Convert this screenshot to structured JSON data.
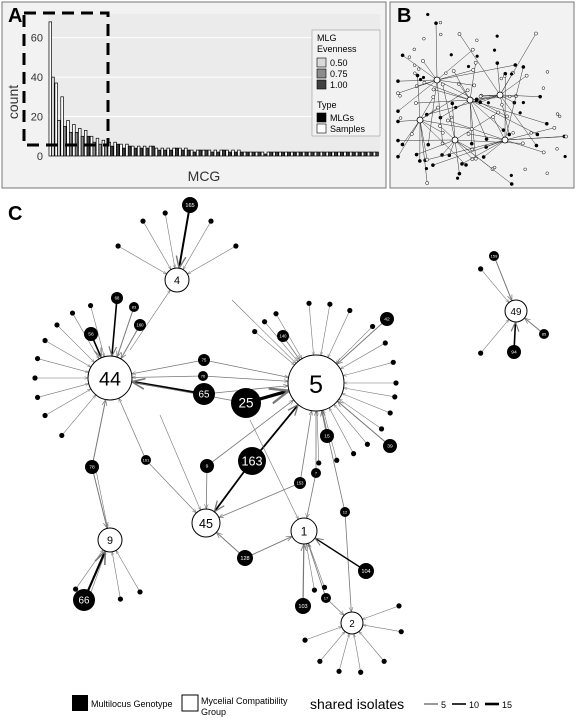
{
  "panels": {
    "a": {
      "label": "A"
    },
    "b": {
      "label": "B"
    },
    "c": {
      "label": "C"
    }
  },
  "chart_data": {
    "type": "bar",
    "xlabel": "MCG",
    "ylabel": "count",
    "ylim": [
      0,
      72
    ],
    "y_ticks": [
      "0",
      "20",
      "40",
      "60"
    ],
    "legend_evenness_title": "MLG Evenness",
    "legend_evenness": [
      {
        "label": "0.50",
        "color": "#d9d9d9"
      },
      {
        "label": "0.75",
        "color": "#8c8c8c"
      },
      {
        "label": "1.00",
        "color": "#404040"
      }
    ],
    "legend_type_title": "Type",
    "legend_type": [
      {
        "label": "MLGs",
        "color": "#000000"
      },
      {
        "label": "Samples",
        "color": "#ffffff"
      }
    ],
    "samples": [
      68,
      37,
      30,
      18,
      16,
      14,
      13,
      10,
      9,
      8,
      7,
      7,
      6,
      6,
      5,
      5,
      5,
      5,
      4,
      4,
      4,
      4,
      4,
      4,
      3,
      3,
      3,
      3,
      3,
      3,
      3,
      3,
      3,
      2,
      2,
      2,
      2,
      2,
      2,
      2,
      2,
      2,
      2,
      2,
      2,
      2,
      2,
      2,
      2,
      2,
      2,
      2,
      2,
      2,
      2,
      2
    ],
    "mlgs": [
      40,
      18,
      15,
      12,
      12,
      10,
      10,
      7,
      6,
      5,
      5,
      6,
      4,
      5,
      4,
      4,
      4,
      5,
      3,
      3,
      3,
      4,
      3,
      3,
      2,
      3,
      3,
      2,
      2,
      3,
      2,
      2,
      2,
      2,
      2,
      2,
      1,
      2,
      2,
      2,
      2,
      2,
      2,
      2,
      2,
      2,
      2,
      2,
      2,
      2,
      2,
      2,
      2,
      2,
      2,
      2
    ],
    "mlg_evenness": [
      0.5,
      0.5,
      0.75,
      0.75,
      0.75,
      0.75,
      1.0,
      0.75,
      0.75,
      0.75,
      1.0,
      1.0,
      1.0,
      1.0,
      1.0,
      1.0,
      1.0,
      1.0,
      1.0,
      1.0,
      1.0,
      1.0,
      1.0,
      1.0,
      1.0,
      1.0,
      1.0,
      1.0,
      1.0,
      1.0,
      1.0,
      1.0,
      1.0,
      1.0,
      1.0,
      1.0,
      1.0,
      1.0,
      1.0,
      1.0,
      1.0,
      1.0,
      1.0,
      1.0,
      1.0,
      1.0,
      1.0,
      1.0,
      1.0,
      1.0,
      1.0,
      1.0,
      1.0,
      1.0,
      1.0,
      1.0
    ]
  },
  "network": {
    "mcg_nodes": [
      {
        "id": "4",
        "label": "4",
        "size": 1
      },
      {
        "id": "44",
        "label": "44",
        "size": 3
      },
      {
        "id": "5",
        "label": "5",
        "size": 4
      },
      {
        "id": "9",
        "label": "9",
        "size": 1
      },
      {
        "id": "45",
        "label": "45",
        "size": 1.3
      },
      {
        "id": "1",
        "label": "1",
        "size": 1.3
      },
      {
        "id": "2",
        "label": "2",
        "size": 1
      },
      {
        "id": "49",
        "label": "49",
        "size": 1
      }
    ],
    "mlg_nodes": [
      {
        "id": "165",
        "label": "165",
        "size": 2
      },
      {
        "id": "68",
        "label": "68",
        "size": 1.5
      },
      {
        "id": "83",
        "label": "83",
        "size": 1
      },
      {
        "id": "160",
        "label": "160",
        "size": 1
      },
      {
        "id": "56",
        "label": "56",
        "size": 1.5
      },
      {
        "id": "75",
        "label": "75",
        "size": 1.2
      },
      {
        "id": "76",
        "label": "76",
        "size": 1
      },
      {
        "id": "65",
        "label": "65",
        "size": 2.5
      },
      {
        "id": "25",
        "label": "25",
        "size": 3.5
      },
      {
        "id": "140",
        "label": "140",
        "size": 1
      },
      {
        "id": "42",
        "label": "42",
        "size": 1.5
      },
      {
        "id": "15",
        "label": "15",
        "size": 1.5
      },
      {
        "id": "39",
        "label": "39",
        "size": 1.5
      },
      {
        "id": "163",
        "label": "163",
        "size": 3
      },
      {
        "id": "78",
        "label": "78",
        "size": 1.5
      },
      {
        "id": "161",
        "label": "161",
        "size": 1
      },
      {
        "id": "9m",
        "label": "9",
        "size": 1.5
      },
      {
        "id": "7",
        "label": "7",
        "size": 1
      },
      {
        "id": "153",
        "label": "153",
        "size": 1
      },
      {
        "id": "12",
        "label": "12",
        "size": 1
      },
      {
        "id": "128",
        "label": "128",
        "size": 1.5
      },
      {
        "id": "104",
        "label": "104",
        "size": 1.5
      },
      {
        "id": "103",
        "label": "103",
        "size": 1.5
      },
      {
        "id": "17",
        "label": "17",
        "size": 1
      },
      {
        "id": "66",
        "label": "66",
        "size": 2.5
      },
      {
        "id": "159",
        "label": "159",
        "size": 1
      },
      {
        "id": "85",
        "label": "85",
        "size": 1
      },
      {
        "id": "94",
        "label": "94",
        "size": 2
      }
    ],
    "legend": {
      "mlg_label": "Multilocus Genotype",
      "mcg_label_line1": "Mycelial Compatibility",
      "mcg_label_line2": "Group",
      "shared_title": "shared isolates",
      "shared_values": [
        "5",
        "10",
        "15"
      ]
    }
  }
}
